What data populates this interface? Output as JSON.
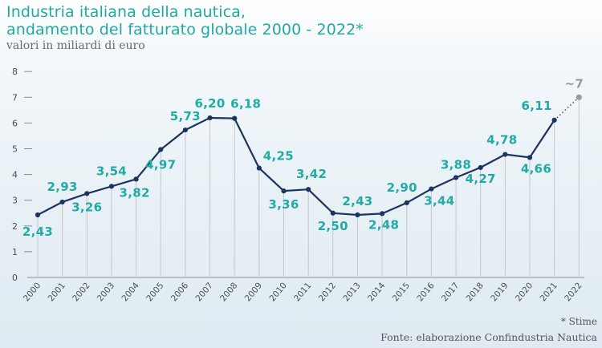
{
  "title_line1": "Industria italiana della nautica,",
  "title_line2": "andamento del fatturato globale 2000 - 2022*",
  "subtitle": "valori in miliardi di euro",
  "note": "* Stime",
  "source": "Fonte: elaborazione Confindustria Nautica",
  "colors": {
    "line": "#1b3560",
    "label": "#22aaa6",
    "estimate": "#9a9a9a",
    "title": "#1fa9a6"
  },
  "chart_data": {
    "type": "line",
    "categories": [
      "2000",
      "2001",
      "2002",
      "2003",
      "2004",
      "2005",
      "2006",
      "2007",
      "2008",
      "2009",
      "2010",
      "2011",
      "2012",
      "2013",
      "2014",
      "2015",
      "2016",
      "2017",
      "2018",
      "2019",
      "2020",
      "2021",
      "2022"
    ],
    "values": [
      2.43,
      2.93,
      3.26,
      3.54,
      3.82,
      4.97,
      5.73,
      6.2,
      6.18,
      4.25,
      3.36,
      3.42,
      2.5,
      2.43,
      2.48,
      2.9,
      3.44,
      3.88,
      4.27,
      4.78,
      4.66,
      6.11,
      7
    ],
    "data_labels": [
      "2,43",
      "2,93",
      "3,26",
      "3,54",
      "3,82",
      "4,97",
      "5,73",
      "6,20",
      "6,18",
      "4,25",
      "3,36",
      "3,42",
      "2,50",
      "2,43",
      "2,48",
      "2,90",
      "3,44",
      "3,88",
      "4,27",
      "4,78",
      "4,66",
      "6,11",
      "~7"
    ],
    "estimated_last_point": true,
    "y_ticks": [
      "0",
      "1",
      "2",
      "3",
      "4",
      "5",
      "6",
      "7",
      "8"
    ],
    "ylim": [
      0,
      8
    ],
    "grid": "vertical",
    "xlabel": "",
    "ylabel": ""
  }
}
